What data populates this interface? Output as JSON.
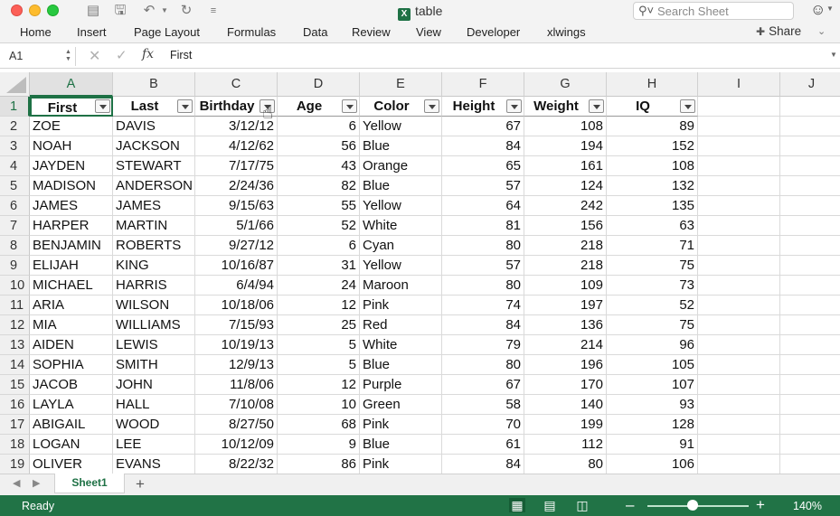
{
  "window": {
    "title": "table",
    "search_placeholder": "Search Sheet"
  },
  "ribbon": {
    "tabs": [
      "Home",
      "Insert",
      "Page Layout",
      "Formulas",
      "Data",
      "Review",
      "View",
      "Developer",
      "xlwings"
    ],
    "share_label": "Share"
  },
  "formula_bar": {
    "cell_ref": "A1",
    "fx_label": "fx",
    "content": "First"
  },
  "grid": {
    "column_letters": [
      "A",
      "B",
      "C",
      "D",
      "E",
      "F",
      "G",
      "H",
      "I",
      "J"
    ],
    "row_numbers": [
      "1",
      "2",
      "3",
      "4",
      "5",
      "6",
      "7",
      "8",
      "9",
      "10",
      "11",
      "12",
      "13",
      "14",
      "15",
      "16",
      "17",
      "18",
      "19"
    ],
    "headers": [
      "First",
      "Last",
      "Birthday",
      "Age",
      "Color",
      "Height",
      "Weight",
      "IQ"
    ],
    "rows": [
      [
        "ZOE",
        "DAVIS",
        "3/12/12",
        "6",
        "Yellow",
        "67",
        "108",
        "89"
      ],
      [
        "NOAH",
        "JACKSON",
        "4/12/62",
        "56",
        "Blue",
        "84",
        "194",
        "152"
      ],
      [
        "JAYDEN",
        "STEWART",
        "7/17/75",
        "43",
        "Orange",
        "65",
        "161",
        "108"
      ],
      [
        "MADISON",
        "ANDERSON",
        "2/24/36",
        "82",
        "Blue",
        "57",
        "124",
        "132"
      ],
      [
        "JAMES",
        "JAMES",
        "9/15/63",
        "55",
        "Yellow",
        "64",
        "242",
        "135"
      ],
      [
        "HARPER",
        "MARTIN",
        "5/1/66",
        "52",
        "White",
        "81",
        "156",
        "63"
      ],
      [
        "BENJAMIN",
        "ROBERTS",
        "9/27/12",
        "6",
        "Cyan",
        "80",
        "218",
        "71"
      ],
      [
        "ELIJAH",
        "KING",
        "10/16/87",
        "31",
        "Yellow",
        "57",
        "218",
        "75"
      ],
      [
        "MICHAEL",
        "HARRIS",
        "6/4/94",
        "24",
        "Maroon",
        "80",
        "109",
        "73"
      ],
      [
        "ARIA",
        "WILSON",
        "10/18/06",
        "12",
        "Pink",
        "74",
        "197",
        "52"
      ],
      [
        "MIA",
        "WILLIAMS",
        "7/15/93",
        "25",
        "Red",
        "84",
        "136",
        "75"
      ],
      [
        "AIDEN",
        "LEWIS",
        "10/19/13",
        "5",
        "White",
        "79",
        "214",
        "96"
      ],
      [
        "SOPHIA",
        "SMITH",
        "12/9/13",
        "5",
        "Blue",
        "80",
        "196",
        "105"
      ],
      [
        "JACOB",
        "JOHN",
        "11/8/06",
        "12",
        "Purple",
        "67",
        "170",
        "107"
      ],
      [
        "LAYLA",
        "HALL",
        "7/10/08",
        "10",
        "Green",
        "58",
        "140",
        "93"
      ],
      [
        "ABIGAIL",
        "WOOD",
        "8/27/50",
        "68",
        "Pink",
        "70",
        "199",
        "128"
      ],
      [
        "LOGAN",
        "LEE",
        "10/12/09",
        "9",
        "Blue",
        "61",
        "112",
        "91"
      ],
      [
        "OLIVER",
        "EVANS",
        "8/22/32",
        "86",
        "Pink",
        "84",
        "80",
        "106"
      ]
    ]
  },
  "sheets": {
    "tabs": [
      "Sheet1"
    ],
    "add_label": "+"
  },
  "status": {
    "text": "Ready",
    "zoom_level": "140%",
    "zoom_fraction": 0.45
  },
  "colors": {
    "accent": "#217346",
    "selection": "#1e7145"
  }
}
